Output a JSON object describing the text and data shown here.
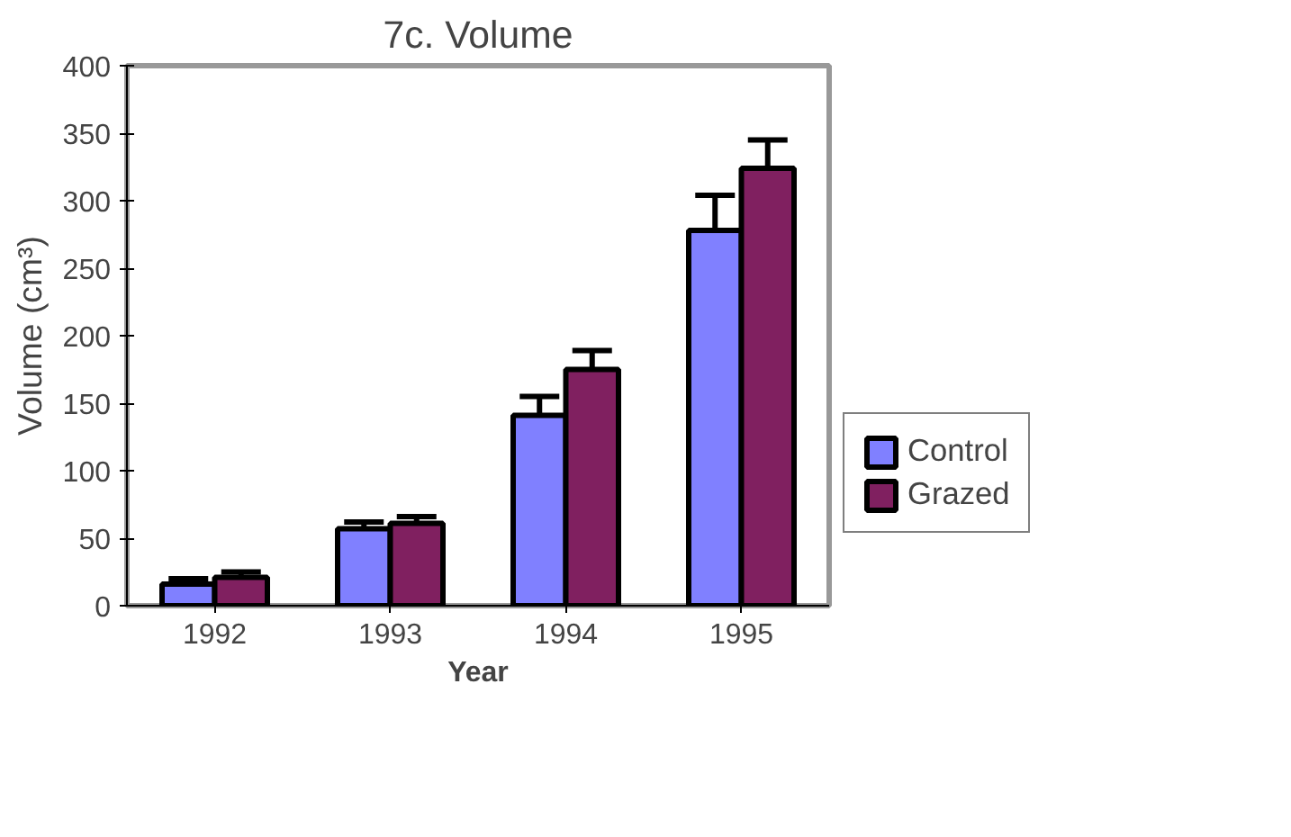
{
  "chart_data": {
    "type": "bar",
    "title": "7c. Volume",
    "xlabel": "Year",
    "ylabel": "Volume (cm³)",
    "categories": [
      "1992",
      "1993",
      "1994",
      "1995"
    ],
    "series": [
      {
        "name": "Control",
        "color": "#8080ff",
        "values": [
          16,
          57,
          141,
          278
        ],
        "errors": [
          4,
          5,
          14,
          26
        ]
      },
      {
        "name": "Grazed",
        "color": "#802060",
        "values": [
          21,
          61,
          175,
          324
        ],
        "errors": [
          4,
          5,
          14,
          21
        ]
      }
    ],
    "ylim": [
      0,
      400
    ],
    "yticks": [
      0,
      50,
      100,
      150,
      200,
      250,
      300,
      350,
      400
    ],
    "grid": false,
    "legend": "right"
  }
}
